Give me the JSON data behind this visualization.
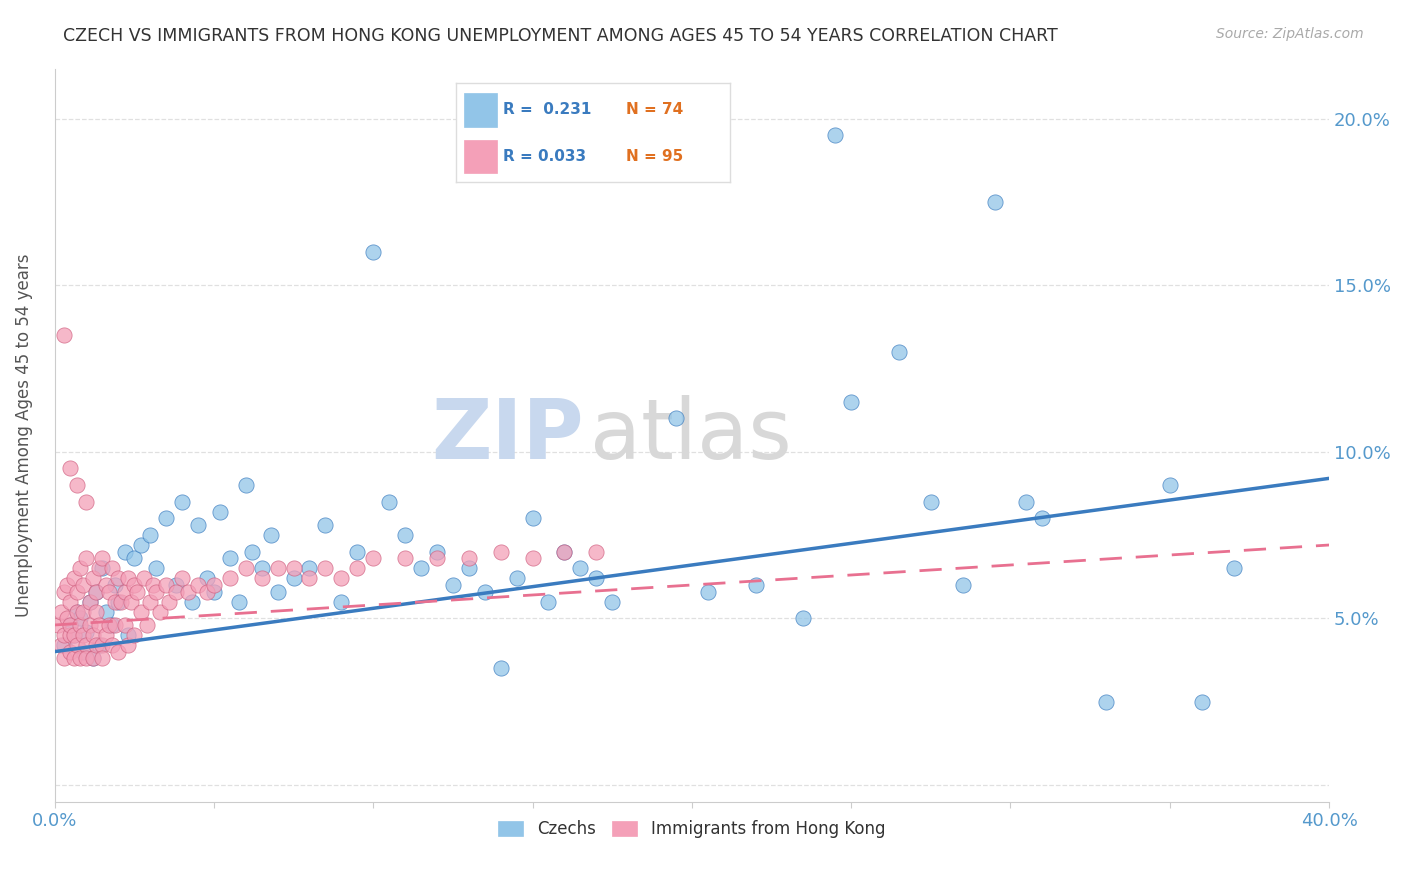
{
  "title": "CZECH VS IMMIGRANTS FROM HONG KONG UNEMPLOYMENT AMONG AGES 45 TO 54 YEARS CORRELATION CHART",
  "source": "Source: ZipAtlas.com",
  "ylabel": "Unemployment Among Ages 45 to 54 years",
  "xlim": [
    0.0,
    0.4
  ],
  "ylim": [
    -0.005,
    0.215
  ],
  "xtick_positions": [
    0.0,
    0.05,
    0.1,
    0.15,
    0.2,
    0.25,
    0.3,
    0.35,
    0.4
  ],
  "xtick_labels": [
    "0.0%",
    "",
    "",
    "",
    "",
    "",
    "",
    "",
    "40.0%"
  ],
  "ytick_positions": [
    0.0,
    0.05,
    0.1,
    0.15,
    0.2
  ],
  "ytick_labels": [
    "",
    "5.0%",
    "10.0%",
    "15.0%",
    "20.0%"
  ],
  "czech_color": "#92c5e8",
  "hk_color": "#f4a0b8",
  "czech_line_color": "#3a7bbf",
  "hk_line_color": "#e87090",
  "tick_color": "#5599cc",
  "watermark_color": "#e0eaf5",
  "background_color": "#ffffff",
  "grid_color": "#dddddd",
  "legend_r_czech": "R =  0.231",
  "legend_n_czech": "N = 74",
  "legend_r_hk": "R = 0.033",
  "legend_n_hk": "N = 95",
  "czech_line_start_y": 0.04,
  "czech_line_end_y": 0.092,
  "hk_line_start_y": 0.048,
  "hk_line_end_y": 0.072,
  "czech_x": [
    0.003,
    0.005,
    0.006,
    0.007,
    0.008,
    0.009,
    0.01,
    0.011,
    0.012,
    0.013,
    0.014,
    0.015,
    0.016,
    0.018,
    0.019,
    0.02,
    0.022,
    0.023,
    0.025,
    0.027,
    0.03,
    0.032,
    0.035,
    0.038,
    0.04,
    0.043,
    0.045,
    0.048,
    0.05,
    0.052,
    0.055,
    0.058,
    0.06,
    0.062,
    0.065,
    0.068,
    0.07,
    0.075,
    0.08,
    0.085,
    0.09,
    0.095,
    0.1,
    0.105,
    0.11,
    0.115,
    0.12,
    0.125,
    0.13,
    0.135,
    0.14,
    0.145,
    0.15,
    0.155,
    0.16,
    0.165,
    0.17,
    0.175,
    0.195,
    0.205,
    0.22,
    0.235,
    0.25,
    0.275,
    0.295,
    0.31,
    0.33,
    0.35,
    0.36,
    0.37,
    0.245,
    0.265,
    0.285,
    0.305
  ],
  "czech_y": [
    0.042,
    0.048,
    0.045,
    0.052,
    0.05,
    0.04,
    0.046,
    0.055,
    0.038,
    0.058,
    0.042,
    0.065,
    0.052,
    0.048,
    0.06,
    0.055,
    0.07,
    0.045,
    0.068,
    0.072,
    0.075,
    0.065,
    0.08,
    0.06,
    0.085,
    0.055,
    0.078,
    0.062,
    0.058,
    0.082,
    0.068,
    0.055,
    0.09,
    0.07,
    0.065,
    0.075,
    0.058,
    0.062,
    0.065,
    0.078,
    0.055,
    0.07,
    0.16,
    0.085,
    0.075,
    0.065,
    0.07,
    0.06,
    0.065,
    0.058,
    0.035,
    0.062,
    0.08,
    0.055,
    0.07,
    0.065,
    0.062,
    0.055,
    0.11,
    0.058,
    0.06,
    0.05,
    0.115,
    0.085,
    0.175,
    0.08,
    0.025,
    0.09,
    0.025,
    0.065,
    0.195,
    0.13,
    0.06,
    0.085
  ],
  "hk_x": [
    0.001,
    0.002,
    0.002,
    0.003,
    0.003,
    0.003,
    0.004,
    0.004,
    0.005,
    0.005,
    0.005,
    0.005,
    0.006,
    0.006,
    0.006,
    0.007,
    0.007,
    0.007,
    0.008,
    0.008,
    0.008,
    0.009,
    0.009,
    0.009,
    0.01,
    0.01,
    0.01,
    0.011,
    0.011,
    0.012,
    0.012,
    0.012,
    0.013,
    0.013,
    0.013,
    0.014,
    0.014,
    0.015,
    0.015,
    0.015,
    0.016,
    0.016,
    0.017,
    0.017,
    0.018,
    0.018,
    0.019,
    0.019,
    0.02,
    0.02,
    0.021,
    0.022,
    0.022,
    0.023,
    0.023,
    0.024,
    0.025,
    0.025,
    0.026,
    0.027,
    0.028,
    0.029,
    0.03,
    0.031,
    0.032,
    0.033,
    0.035,
    0.036,
    0.038,
    0.04,
    0.042,
    0.045,
    0.048,
    0.05,
    0.055,
    0.06,
    0.065,
    0.07,
    0.075,
    0.08,
    0.085,
    0.09,
    0.095,
    0.1,
    0.11,
    0.12,
    0.13,
    0.14,
    0.15,
    0.16,
    0.17,
    0.005,
    0.007,
    0.01,
    0.003
  ],
  "hk_y": [
    0.048,
    0.052,
    0.042,
    0.058,
    0.045,
    0.038,
    0.06,
    0.05,
    0.055,
    0.045,
    0.04,
    0.048,
    0.062,
    0.038,
    0.045,
    0.058,
    0.042,
    0.052,
    0.065,
    0.048,
    0.038,
    0.06,
    0.045,
    0.052,
    0.068,
    0.042,
    0.038,
    0.055,
    0.048,
    0.062,
    0.045,
    0.038,
    0.058,
    0.042,
    0.052,
    0.065,
    0.048,
    0.068,
    0.042,
    0.038,
    0.06,
    0.045,
    0.058,
    0.048,
    0.065,
    0.042,
    0.055,
    0.048,
    0.062,
    0.04,
    0.055,
    0.058,
    0.048,
    0.062,
    0.042,
    0.055,
    0.06,
    0.045,
    0.058,
    0.052,
    0.062,
    0.048,
    0.055,
    0.06,
    0.058,
    0.052,
    0.06,
    0.055,
    0.058,
    0.062,
    0.058,
    0.06,
    0.058,
    0.06,
    0.062,
    0.065,
    0.062,
    0.065,
    0.065,
    0.062,
    0.065,
    0.062,
    0.065,
    0.068,
    0.068,
    0.068,
    0.068,
    0.07,
    0.068,
    0.07,
    0.07,
    0.095,
    0.09,
    0.085,
    0.135
  ]
}
